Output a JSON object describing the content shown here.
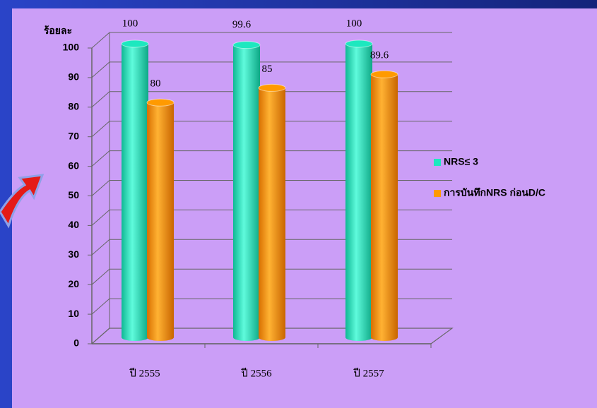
{
  "chart_data": {
    "type": "bar",
    "y_label": "ร้อยละ",
    "categories": [
      "ปี 2555",
      "ปี 2556",
      "ปี 2557"
    ],
    "series": [
      {
        "name": "NRS≤ 3",
        "color": "#1de8bf",
        "values": [
          100,
          99.6,
          100
        ]
      },
      {
        "name": "การบันทึกNRS ก่อนD/C",
        "color": "#ff9a00",
        "values": [
          80,
          85,
          89.6
        ]
      }
    ],
    "ylim": [
      0,
      100
    ],
    "yticks": [
      0,
      10,
      20,
      30,
      40,
      50,
      60,
      70,
      80,
      90,
      100
    ],
    "grid": true,
    "legend": "right"
  }
}
